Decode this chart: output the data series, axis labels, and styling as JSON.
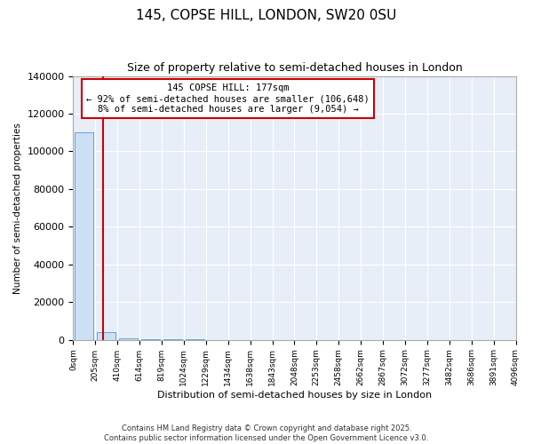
{
  "title": "145, COPSE HILL, LONDON, SW20 0SU",
  "subtitle": "Size of property relative to semi-detached houses in London",
  "xlabel": "Distribution of semi-detached houses by size in London",
  "ylabel": "Number of semi-detached properties",
  "annotation_text": "145 COPSE HILL: 177sqm\n← 92% of semi-detached houses are smaller (106,648)\n8% of semi-detached houses are larger (9,054) →",
  "bar_color": "#cce0f5",
  "bar_edge_color": "#5599cc",
  "red_line_color": "#cc0000",
  "bin_edges": [
    0,
    205,
    410,
    614,
    819,
    1024,
    1229,
    1434,
    1638,
    1843,
    2048,
    2253,
    2458,
    2662,
    2867,
    3072,
    3277,
    3482,
    3686,
    3891,
    4096
  ],
  "bin_labels": [
    "0sqm",
    "205sqm",
    "410sqm",
    "614sqm",
    "819sqm",
    "1024sqm",
    "1229sqm",
    "1434sqm",
    "1638sqm",
    "1843sqm",
    "2048sqm",
    "2253sqm",
    "2458sqm",
    "2662sqm",
    "2867sqm",
    "3072sqm",
    "3277sqm",
    "3482sqm",
    "3686sqm",
    "3891sqm",
    "4096sqm"
  ],
  "bar_heights": [
    110000,
    4000,
    600,
    200,
    100,
    60,
    40,
    30,
    25,
    20,
    15,
    12,
    10,
    8,
    6,
    5,
    4,
    3,
    2,
    1
  ],
  "ylim": [
    0,
    140000
  ],
  "yticks": [
    0,
    20000,
    40000,
    60000,
    80000,
    100000,
    120000,
    140000
  ],
  "red_line_x": 177,
  "background_color": "#e8eef8",
  "grid_color": "#ffffff",
  "footer": "Contains HM Land Registry data © Crown copyright and database right 2025.\nContains public sector information licensed under the Open Government Licence v3.0."
}
